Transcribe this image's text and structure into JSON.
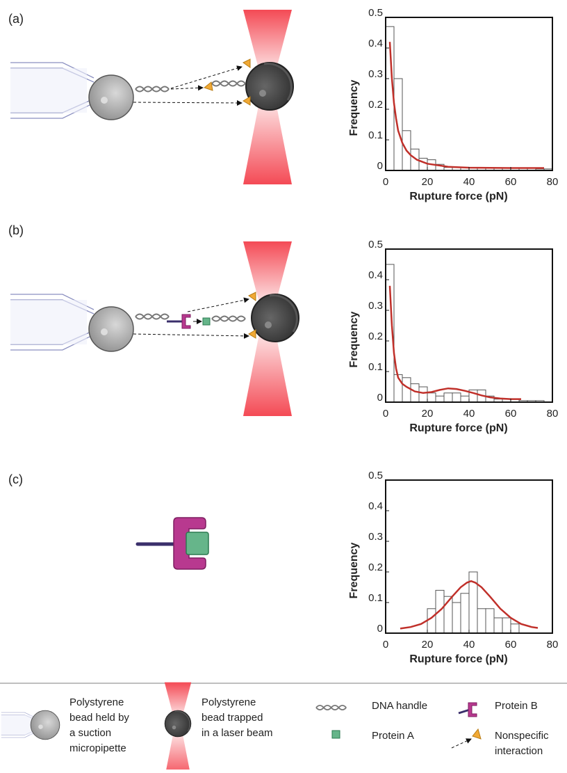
{
  "panels": [
    "(a)",
    "(b)",
    "(c)"
  ],
  "chart_data": [
    {
      "type": "histogram",
      "x_label": "Rupture force (pN)",
      "y_label": "Frequency",
      "bins": [
        0,
        4,
        8,
        12,
        16,
        20,
        24,
        28,
        32,
        36,
        40,
        44,
        48,
        52,
        56,
        60,
        64,
        68,
        72,
        76,
        80
      ],
      "counts": [
        0.47,
        0.3,
        0.13,
        0.07,
        0.04,
        0.035,
        0.02,
        0.01,
        0.01,
        0.01,
        0.01,
        0.01,
        0.008,
        0.008,
        0.008,
        0.008,
        0.008,
        0.008,
        0.005,
        0.005
      ],
      "color": "#ffffff",
      "edge_color": "#555555",
      "fit": {
        "color": "#c0302a",
        "x": [
          2,
          3,
          4,
          5,
          6,
          8,
          10,
          12,
          15,
          20,
          30,
          40,
          60,
          76
        ],
        "values": [
          0.42,
          0.3,
          0.22,
          0.17,
          0.13,
          0.09,
          0.065,
          0.05,
          0.035,
          0.022,
          0.012,
          0.009,
          0.008,
          0.008
        ]
      },
      "xlim": [
        0,
        80
      ],
      "xticks": [
        0,
        20,
        40,
        60,
        80
      ],
      "ylim": [
        0,
        0.5
      ],
      "yticks": [
        0,
        0.1,
        0.2,
        0.3,
        0.4,
        0.5
      ]
    },
    {
      "type": "histogram",
      "x_label": "Rupture force (pN)",
      "y_label": "Frequency",
      "bins": [
        0,
        4,
        8,
        12,
        16,
        20,
        24,
        28,
        32,
        36,
        40,
        44,
        48,
        52,
        56,
        60,
        64,
        68,
        72,
        76,
        80
      ],
      "counts": [
        0.45,
        0.09,
        0.08,
        0.06,
        0.05,
        0.03,
        0.02,
        0.03,
        0.03,
        0.02,
        0.04,
        0.04,
        0.02,
        0.01,
        0.01,
        0.01,
        0.005,
        0.005,
        0.005,
        0.0
      ],
      "color": "#ffffff",
      "edge_color": "#555555",
      "fit": {
        "color": "#c0302a",
        "x": [
          2,
          3,
          4,
          5,
          6,
          8,
          10,
          14,
          18,
          22,
          26,
          30,
          34,
          38,
          42,
          46,
          50,
          55,
          60,
          65
        ],
        "values": [
          0.38,
          0.25,
          0.16,
          0.11,
          0.08,
          0.06,
          0.05,
          0.035,
          0.03,
          0.033,
          0.04,
          0.045,
          0.043,
          0.037,
          0.03,
          0.022,
          0.016,
          0.012,
          0.01,
          0.01
        ]
      },
      "xlim": [
        0,
        80
      ],
      "xticks": [
        0,
        20,
        40,
        60,
        80
      ],
      "ylim": [
        0,
        0.5
      ],
      "yticks": [
        0,
        0.1,
        0.2,
        0.3,
        0.4,
        0.5
      ]
    },
    {
      "type": "histogram",
      "x_label": "Rupture force (pN)",
      "y_label": "Frequency",
      "bins": [
        20,
        24,
        28,
        32,
        36,
        40,
        44,
        48,
        52,
        56,
        60,
        64
      ],
      "counts": [
        0.08,
        0.14,
        0.12,
        0.1,
        0.13,
        0.2,
        0.08,
        0.08,
        0.05,
        0.05,
        0.03
      ],
      "color": "#ffffff",
      "edge_color": "#555555",
      "fit": {
        "color": "#c0302a",
        "x": [
          7,
          12,
          17,
          22,
          27,
          32,
          36,
          39,
          41,
          43,
          46,
          50,
          55,
          60,
          65,
          70,
          73
        ],
        "values": [
          0.015,
          0.02,
          0.03,
          0.05,
          0.08,
          0.12,
          0.15,
          0.165,
          0.17,
          0.165,
          0.15,
          0.12,
          0.08,
          0.05,
          0.03,
          0.02,
          0.017
        ]
      },
      "xlim": [
        0,
        80
      ],
      "xticks": [
        0,
        20,
        40,
        60,
        80
      ],
      "ylim": [
        0,
        0.5
      ],
      "yticks": [
        0,
        0.1,
        0.2,
        0.3,
        0.4,
        0.5
      ]
    }
  ],
  "legend": [
    {
      "lines": [
        "Polystyrene",
        "bead held by",
        "a suction",
        "micropipette"
      ]
    },
    {
      "lines": [
        "Polystyrene",
        "bead trapped",
        "in a laser beam"
      ]
    },
    {
      "lines": [
        "DNA handle"
      ]
    },
    {
      "lines": [
        "Protein A"
      ]
    },
    {
      "lines": [
        "Protein B"
      ]
    },
    {
      "lines": [
        "Nonspecific",
        "interaction"
      ]
    }
  ]
}
